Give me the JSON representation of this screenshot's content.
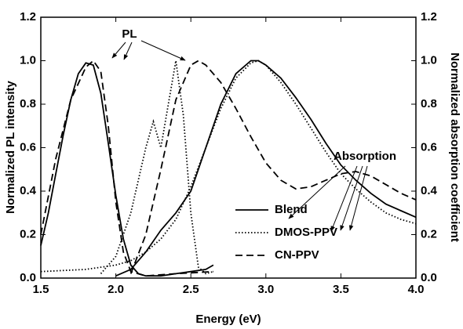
{
  "chart_data": {
    "type": "line",
    "xlabel": "Energy (eV)",
    "ylabel": "Normalized PL intensity",
    "y2label": "Normalized absorption coefficient",
    "xlim": [
      1.5,
      4.0
    ],
    "xticks": [
      1.5,
      {
        "value": 2,
        "label": "2.0"
      },
      2.5,
      {
        "value": 3,
        "label": "3.0"
      },
      3.5,
      {
        "value": 4,
        "label": "4.0"
      }
    ],
    "ylim": [
      0,
      1.2
    ],
    "yticks": [
      {
        "value": 0,
        "label": "0.0"
      },
      0.2,
      0.4,
      0.6,
      0.8,
      {
        "value": 1,
        "label": "1.0"
      },
      1.2
    ],
    "y2lim": [
      0,
      1.2
    ],
    "y2ticks": [
      {
        "value": 0,
        "label": "0.0"
      },
      0.2,
      0.4,
      0.6,
      0.8,
      {
        "value": 1,
        "label": "1.0"
      },
      1.2
    ],
    "legend": "lower right",
    "annotations": [
      {
        "text": "PL"
      },
      {
        "text": "Absorption"
      }
    ],
    "series": [
      {
        "name": "Blend",
        "color": "#000000",
        "dash": "solid",
        "curves": [
          {
            "x": [
              1.5,
              1.55,
              1.6,
              1.65,
              1.7,
              1.75,
              1.8,
              1.85,
              1.9,
              1.95,
              2.0,
              2.05,
              2.1,
              2.15,
              2.2,
              2.3,
              2.4,
              2.5,
              2.6,
              2.65
            ],
            "values": [
              0.15,
              0.3,
              0.48,
              0.66,
              0.82,
              0.94,
              0.99,
              0.98,
              0.85,
              0.62,
              0.38,
              0.18,
              0.06,
              0.02,
              0.01,
              0.01,
              0.02,
              0.03,
              0.04,
              0.06
            ]
          },
          {
            "axis": "y2",
            "x": [
              2.0,
              2.1,
              2.2,
              2.3,
              2.4,
              2.5,
              2.6,
              2.7,
              2.8,
              2.9,
              2.95,
              3.0,
              3.1,
              3.2,
              3.3,
              3.4,
              3.5,
              3.6,
              3.7,
              3.8,
              3.9,
              4.0
            ],
            "values": [
              0.01,
              0.04,
              0.12,
              0.22,
              0.3,
              0.4,
              0.6,
              0.8,
              0.94,
              1.0,
              1.0,
              0.98,
              0.92,
              0.83,
              0.73,
              0.62,
              0.52,
              0.45,
              0.39,
              0.34,
              0.31,
              0.28
            ]
          }
        ]
      },
      {
        "name": "DMOS-PPV",
        "color": "#000000",
        "dash": "dotted",
        "curves": [
          {
            "x": [
              1.9,
              2.0,
              2.1,
              2.2,
              2.25,
              2.3,
              2.35,
              2.4,
              2.45,
              2.5,
              2.55,
              2.6,
              2.65
            ],
            "values": [
              0.02,
              0.1,
              0.3,
              0.6,
              0.72,
              0.6,
              0.8,
              1.0,
              0.75,
              0.3,
              0.05,
              0.02,
              0.03
            ]
          },
          {
            "axis": "y2",
            "x": [
              1.5,
              1.8,
              2.0,
              2.1,
              2.2,
              2.3,
              2.4,
              2.5,
              2.6,
              2.7,
              2.8,
              2.9,
              2.95,
              3.0,
              3.1,
              3.2,
              3.3,
              3.4,
              3.5,
              3.6,
              3.7,
              3.8,
              3.9,
              4.0
            ],
            "values": [
              0.03,
              0.04,
              0.06,
              0.08,
              0.12,
              0.18,
              0.27,
              0.42,
              0.6,
              0.78,
              0.92,
              0.99,
              1.0,
              0.98,
              0.9,
              0.8,
              0.69,
              0.58,
              0.48,
              0.41,
              0.35,
              0.3,
              0.27,
              0.25
            ]
          }
        ]
      },
      {
        "name": "CN-PPV",
        "color": "#000000",
        "dash": "dashed",
        "curves": [
          {
            "x": [
              1.5,
              1.6,
              1.7,
              1.8,
              1.85,
              1.9,
              1.95,
              2.0,
              2.05,
              2.1,
              2.2,
              2.4,
              2.65
            ],
            "values": [
              0.2,
              0.55,
              0.82,
              0.97,
              1.0,
              0.95,
              0.7,
              0.35,
              0.12,
              0.03,
              0.01,
              0.02,
              0.03
            ]
          },
          {
            "axis": "y2",
            "x": [
              2.1,
              2.2,
              2.3,
              2.4,
              2.5,
              2.55,
              2.6,
              2.7,
              2.8,
              2.9,
              3.0,
              3.1,
              3.2,
              3.3,
              3.4,
              3.5,
              3.6,
              3.7,
              3.8,
              3.9,
              4.0
            ],
            "values": [
              0.02,
              0.2,
              0.5,
              0.82,
              0.98,
              1.0,
              0.98,
              0.9,
              0.78,
              0.65,
              0.53,
              0.45,
              0.41,
              0.42,
              0.45,
              0.48,
              0.49,
              0.47,
              0.43,
              0.39,
              0.36
            ]
          }
        ]
      }
    ]
  }
}
